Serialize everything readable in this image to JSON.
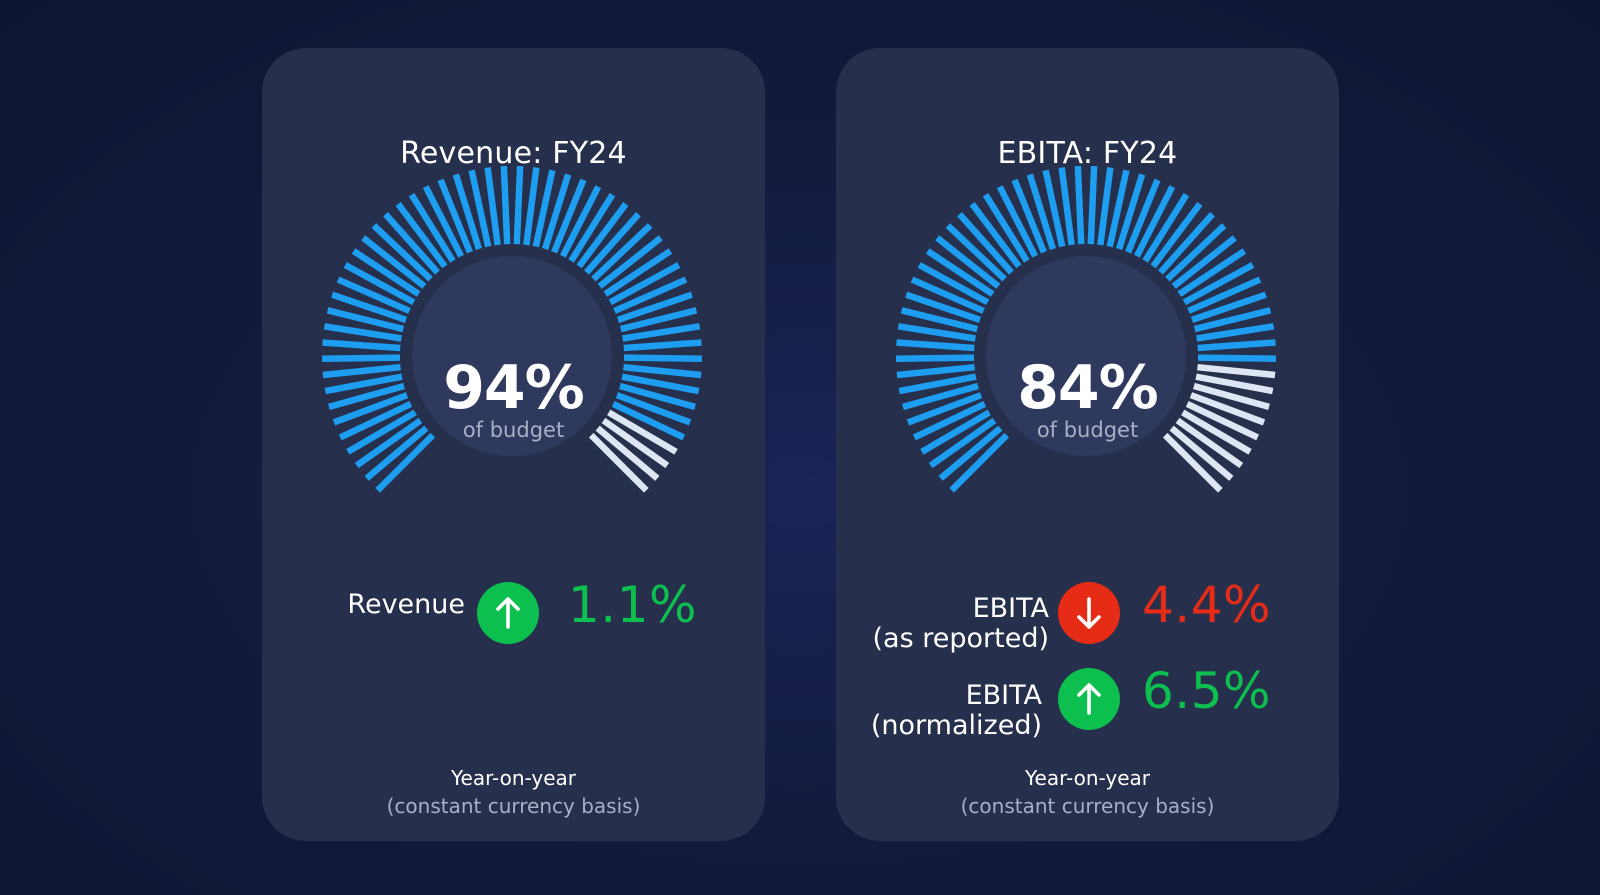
{
  "colors": {
    "achieved": "#1e9ef0",
    "remaining": "#dde6f2",
    "positive": "#0dbf4f",
    "negative": "#e62b16",
    "gauge_center": "#2f385d"
  },
  "cards": [
    {
      "title": "Revenue: FY24",
      "gauge": {
        "value_text": "94%",
        "caption": "of budget"
      },
      "metrics": [
        {
          "label_lines": [
            "Revenue"
          ],
          "direction": "up",
          "icon": "arrow-up-icon",
          "value": "1.1%"
        }
      ],
      "footnote": {
        "line1": "Year-on-year",
        "line2": "(constant currency basis)"
      }
    },
    {
      "title": "EBITA: FY24",
      "gauge": {
        "value_text": "84%",
        "caption": "of budget"
      },
      "metrics": [
        {
          "label_lines": [
            "EBITA",
            "(as reported)"
          ],
          "direction": "down",
          "icon": "arrow-down-icon",
          "value": "4.4%"
        },
        {
          "label_lines": [
            "EBITA",
            "(normalized)"
          ],
          "direction": "up",
          "icon": "arrow-up-icon",
          "value": "6.5%"
        }
      ],
      "footnote": {
        "line1": "Year-on-year",
        "line2": "(constant currency basis)"
      }
    }
  ],
  "chart_data": [
    {
      "type": "gauge",
      "title": "Revenue: FY24",
      "value": 94,
      "unit": "%",
      "caption": "of budget",
      "range": [
        0,
        100
      ]
    },
    {
      "type": "gauge",
      "title": "EBITA: FY24",
      "value": 84,
      "unit": "%",
      "caption": "of budget",
      "range": [
        0,
        100
      ]
    }
  ]
}
